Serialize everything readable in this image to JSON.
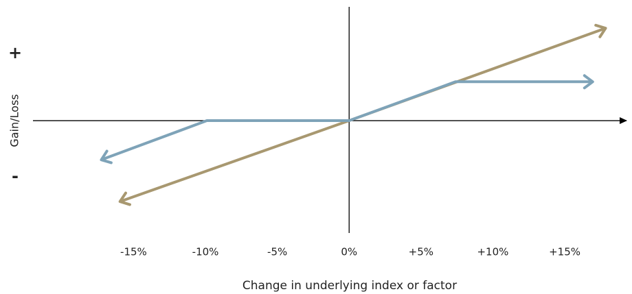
{
  "chart_data": {
    "type": "line",
    "x_axis_label": "Change in underlying index or factor",
    "y_axis_label": "Gain/Loss",
    "y_positive_label": "+",
    "y_negative_label": "-",
    "xlim": [
      -22,
      19.3
    ],
    "ylim": [
      -7.8,
      7.9
    ],
    "xticks": [
      {
        "value": -15,
        "label": "-15%"
      },
      {
        "value": -10,
        "label": "-10%"
      },
      {
        "value": -5,
        "label": "-5%"
      },
      {
        "value": 0,
        "label": "0%"
      },
      {
        "value": 5,
        "label": "+5%"
      },
      {
        "value": 10,
        "label": "+10%"
      },
      {
        "value": 15,
        "label": "+15%"
      }
    ],
    "series": [
      {
        "color": "#a89870",
        "x": [
          -15.9,
          0,
          17.8
        ],
        "values": [
          -5.6,
          0,
          6.4
        ]
      },
      {
        "color": "#7ea3b8",
        "x": [
          -17.2,
          -9.9,
          0,
          7.4,
          16.9
        ],
        "values": [
          -2.7,
          0,
          0,
          2.7,
          2.7
        ]
      }
    ]
  }
}
